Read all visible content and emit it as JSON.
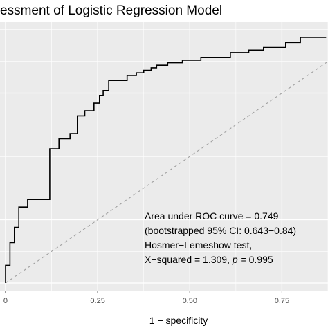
{
  "chart_data": {
    "type": "line",
    "title": "essment of Logistic Regression Model",
    "xlabel": "1 − specificity",
    "ylabel": "",
    "xlim": [
      -0.015,
      0.875
    ],
    "ylim": [
      -0.03,
      1.03
    ],
    "x_ticks": [
      0.0,
      0.25,
      0.5,
      0.75
    ],
    "x_tick_labels": [
      "0",
      "0.25",
      "0.50",
      "0.75"
    ],
    "grid": true,
    "background": "#ebebeb",
    "grid_color": "#ffffff",
    "series": [
      {
        "style": "step",
        "color": "#000000",
        "x": [
          0.0,
          0.0,
          0.012,
          0.012,
          0.024,
          0.024,
          0.036,
          0.036,
          0.06,
          0.06,
          0.12,
          0.12,
          0.145,
          0.145,
          0.175,
          0.175,
          0.195,
          0.195,
          0.215,
          0.215,
          0.24,
          0.24,
          0.255,
          0.255,
          0.265,
          0.265,
          0.28,
          0.28,
          0.33,
          0.33,
          0.355,
          0.355,
          0.375,
          0.375,
          0.395,
          0.395,
          0.41,
          0.41,
          0.44,
          0.44,
          0.48,
          0.48,
          0.53,
          0.53,
          0.61,
          0.61,
          0.66,
          0.66,
          0.7,
          0.7,
          0.76,
          0.76,
          0.8,
          0.8,
          0.87
        ],
        "y": [
          0.0,
          0.07,
          0.07,
          0.16,
          0.16,
          0.22,
          0.22,
          0.3,
          0.3,
          0.33,
          0.33,
          0.53,
          0.53,
          0.57,
          0.57,
          0.59,
          0.59,
          0.66,
          0.66,
          0.68,
          0.68,
          0.71,
          0.71,
          0.74,
          0.74,
          0.76,
          0.76,
          0.8,
          0.8,
          0.82,
          0.82,
          0.83,
          0.83,
          0.84,
          0.84,
          0.85,
          0.85,
          0.86,
          0.86,
          0.87,
          0.87,
          0.88,
          0.88,
          0.89,
          0.89,
          0.91,
          0.91,
          0.92,
          0.92,
          0.93,
          0.93,
          0.95,
          0.95,
          0.97,
          0.97
        ]
      },
      {
        "style": "dashed-reference",
        "color": "#a0a0a0",
        "x": [
          0.0,
          1.0
        ],
        "y": [
          0.0,
          1.0
        ]
      }
    ],
    "annotations": [
      "Area under ROC curve = 0.749",
      "(bootstrapped 95% CI: 0.643−0.84)",
      "Hosmer−Lemeshow test,",
      "X−squared = 1.309, ",
      "p",
      " = 0.995"
    ]
  }
}
